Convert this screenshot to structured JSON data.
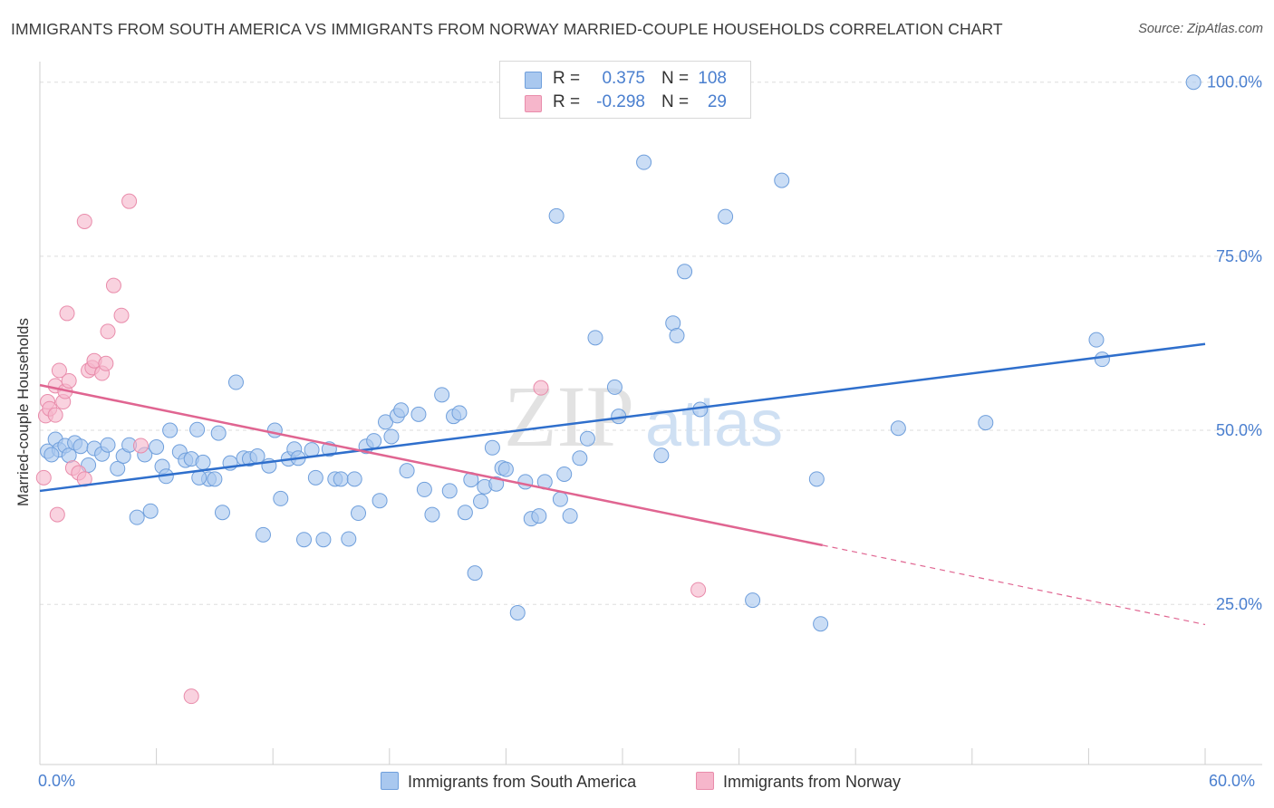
{
  "title": "IMMIGRANTS FROM SOUTH AMERICA VS IMMIGRANTS FROM NORWAY MARRIED-COUPLE HOUSEHOLDS CORRELATION CHART",
  "source": "Source: ZipAtlas.com",
  "watermark": "ZIPatlas",
  "colors": {
    "blue_fill": "#a9c8ef",
    "blue_stroke": "#6f9fdc",
    "blue_line": "#2f6fcc",
    "pink_fill": "#f6b6cb",
    "pink_stroke": "#e98cab",
    "pink_line": "#e06591",
    "axis_text": "#4a7fcf",
    "grid": "#dddddd"
  },
  "legend": {
    "rows": [
      {
        "r_label": "R =",
        "r_value": "0.375",
        "n_label": "N =",
        "n_value": "108",
        "color": "#a9c8ef",
        "border": "#6f9fdc"
      },
      {
        "r_label": "R =",
        "r_value": "-0.298",
        "n_label": "N =",
        "n_value": "29",
        "color": "#f6b6cb",
        "border": "#e98cab"
      }
    ]
  },
  "chart_data": {
    "type": "scatter",
    "title": "IMMIGRANTS FROM SOUTH AMERICA VS IMMIGRANTS FROM NORWAY MARRIED-COUPLE HOUSEHOLDS CORRELATION CHART",
    "xlabel": "",
    "ylabel": "Married-couple Households",
    "x_tick_labels": [
      "0.0%",
      "60.0%"
    ],
    "y_tick_labels": [
      "25.0%",
      "50.0%",
      "75.0%",
      "100.0%"
    ],
    "xlim": [
      0,
      60
    ],
    "ylim": [
      2,
      104
    ],
    "grid": true,
    "legend_position": "top-center",
    "series": [
      {
        "name": "Immigrants from South America",
        "color": "#a9c8ef",
        "trend": {
          "x": [
            0,
            60
          ],
          "y": [
            41.3,
            62.4
          ],
          "dashed_from": null
        },
        "points": [
          [
            0.4,
            47.0
          ],
          [
            0.8,
            48.7
          ],
          [
            1.0,
            47.2
          ],
          [
            1.3,
            47.8
          ],
          [
            1.5,
            46.4
          ],
          [
            1.8,
            48.2
          ],
          [
            2.1,
            47.7
          ],
          [
            2.5,
            45.0
          ],
          [
            2.8,
            47.4
          ],
          [
            3.2,
            46.6
          ],
          [
            3.5,
            47.9
          ],
          [
            4.0,
            44.5
          ],
          [
            4.3,
            46.3
          ],
          [
            4.6,
            47.9
          ],
          [
            5.0,
            37.5
          ],
          [
            5.4,
            46.5
          ],
          [
            5.7,
            38.4
          ],
          [
            6.0,
            47.6
          ],
          [
            6.3,
            44.8
          ],
          [
            6.5,
            43.4
          ],
          [
            6.7,
            50.0
          ],
          [
            7.2,
            46.9
          ],
          [
            7.5,
            45.7
          ],
          [
            7.8,
            45.9
          ],
          [
            8.1,
            50.1
          ],
          [
            8.4,
            45.4
          ],
          [
            8.7,
            43.0
          ],
          [
            9.0,
            43.0
          ],
          [
            9.2,
            49.6
          ],
          [
            9.4,
            38.2
          ],
          [
            9.8,
            45.3
          ],
          [
            10.1,
            56.9
          ],
          [
            10.5,
            46.0
          ],
          [
            10.8,
            45.9
          ],
          [
            11.2,
            46.3
          ],
          [
            11.5,
            35.0
          ],
          [
            11.8,
            44.9
          ],
          [
            12.1,
            50.0
          ],
          [
            12.4,
            40.2
          ],
          [
            12.8,
            45.9
          ],
          [
            13.1,
            47.3
          ],
          [
            13.3,
            46.0
          ],
          [
            13.6,
            34.3
          ],
          [
            14.0,
            47.2
          ],
          [
            14.2,
            43.2
          ],
          [
            14.6,
            34.3
          ],
          [
            14.9,
            47.3
          ],
          [
            15.2,
            43.0
          ],
          [
            15.5,
            43.0
          ],
          [
            15.9,
            34.4
          ],
          [
            16.2,
            43.0
          ],
          [
            16.4,
            38.1
          ],
          [
            16.8,
            47.7
          ],
          [
            17.2,
            48.5
          ],
          [
            17.5,
            39.9
          ],
          [
            17.8,
            51.2
          ],
          [
            18.1,
            49.1
          ],
          [
            18.4,
            52.1
          ],
          [
            18.6,
            52.9
          ],
          [
            18.9,
            44.2
          ],
          [
            19.5,
            52.3
          ],
          [
            19.8,
            41.5
          ],
          [
            20.2,
            37.9
          ],
          [
            20.7,
            55.1
          ],
          [
            21.1,
            41.3
          ],
          [
            21.3,
            52.0
          ],
          [
            21.6,
            52.5
          ],
          [
            21.9,
            38.2
          ],
          [
            22.2,
            42.9
          ],
          [
            22.4,
            29.5
          ],
          [
            22.7,
            39.8
          ],
          [
            22.9,
            41.9
          ],
          [
            23.3,
            47.5
          ],
          [
            23.5,
            42.3
          ],
          [
            23.8,
            44.6
          ],
          [
            24.0,
            44.4
          ],
          [
            24.6,
            23.8
          ],
          [
            25.0,
            42.6
          ],
          [
            25.3,
            37.3
          ],
          [
            25.7,
            37.7
          ],
          [
            26.0,
            42.6
          ],
          [
            26.6,
            80.8
          ],
          [
            26.8,
            40.1
          ],
          [
            27.0,
            43.7
          ],
          [
            27.3,
            37.7
          ],
          [
            27.8,
            46.0
          ],
          [
            28.2,
            48.8
          ],
          [
            28.6,
            63.3
          ],
          [
            29.6,
            56.2
          ],
          [
            29.8,
            52.0
          ],
          [
            31.1,
            88.5
          ],
          [
            32.0,
            46.4
          ],
          [
            32.6,
            65.4
          ],
          [
            32.8,
            63.6
          ],
          [
            33.2,
            72.8
          ],
          [
            34.0,
            53.0
          ],
          [
            35.3,
            80.7
          ],
          [
            36.7,
            25.6
          ],
          [
            38.2,
            85.9
          ],
          [
            40.0,
            43.0
          ],
          [
            40.2,
            22.2
          ],
          [
            44.2,
            50.3
          ],
          [
            48.7,
            51.1
          ],
          [
            54.4,
            63.0
          ],
          [
            54.7,
            60.2
          ],
          [
            59.4,
            100.0
          ],
          [
            0.6,
            46.5
          ],
          [
            8.2,
            43.2
          ]
        ]
      },
      {
        "name": "Immigrants from Norway",
        "color": "#f6b6cb",
        "trend": {
          "x": [
            0,
            40.3,
            60
          ],
          "y": [
            56.5,
            33.5,
            22.1
          ],
          "dashed_from": 40.3
        },
        "points": [
          [
            0.2,
            43.2
          ],
          [
            0.3,
            52.1
          ],
          [
            0.4,
            54.1
          ],
          [
            0.5,
            53.1
          ],
          [
            0.8,
            52.2
          ],
          [
            0.8,
            56.4
          ],
          [
            0.9,
            37.9
          ],
          [
            1.0,
            58.6
          ],
          [
            1.2,
            54.1
          ],
          [
            1.3,
            55.6
          ],
          [
            1.4,
            66.8
          ],
          [
            1.5,
            57.1
          ],
          [
            1.7,
            44.6
          ],
          [
            2.0,
            43.9
          ],
          [
            2.3,
            43.0
          ],
          [
            2.3,
            80.0
          ],
          [
            2.5,
            58.6
          ],
          [
            2.7,
            59.0
          ],
          [
            2.8,
            60.0
          ],
          [
            3.2,
            58.2
          ],
          [
            3.4,
            59.6
          ],
          [
            3.5,
            64.2
          ],
          [
            3.8,
            70.8
          ],
          [
            4.2,
            66.5
          ],
          [
            4.6,
            82.9
          ],
          [
            5.2,
            47.8
          ],
          [
            7.8,
            11.8
          ],
          [
            25.8,
            56.1
          ],
          [
            33.9,
            27.1
          ]
        ]
      }
    ]
  }
}
